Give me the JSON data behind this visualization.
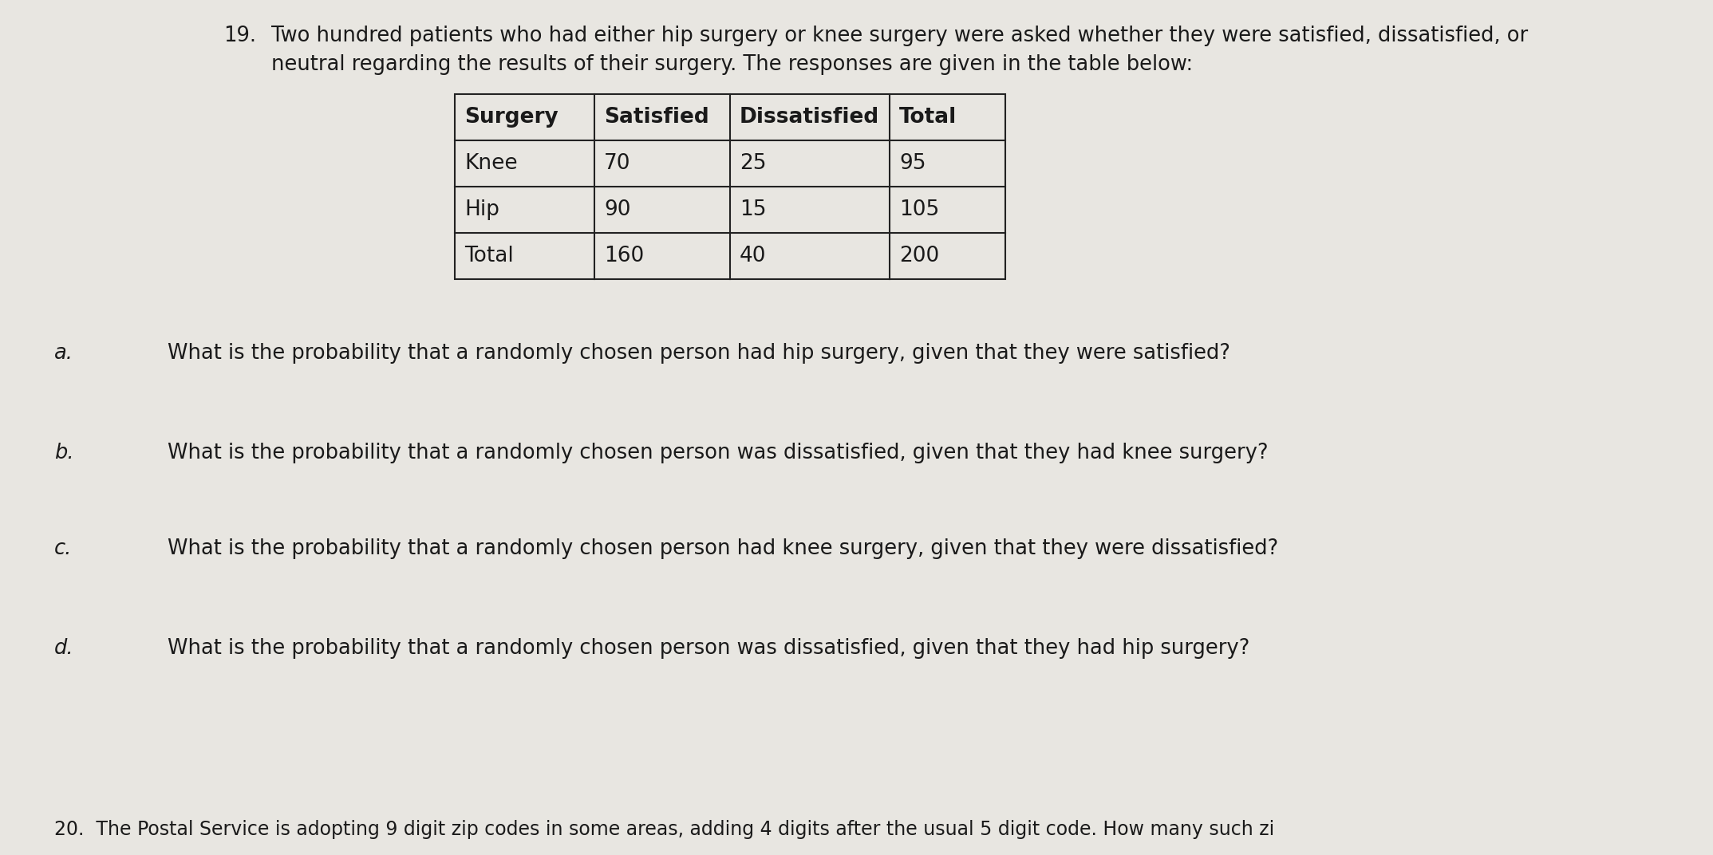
{
  "problem_number": "19.",
  "intro_text_line1": "Two hundred patients who had either hip surgery or knee surgery were asked whether they were satisfied, dissatisfied, or",
  "intro_text_line2": "neutral regarding the results of their surgery. The responses are given in the table below:",
  "table_headers": [
    "Surgery",
    "Satisfied",
    "Dissatisfied",
    "Total"
  ],
  "table_rows": [
    [
      "Knee",
      "70",
      "25",
      "95"
    ],
    [
      "Hip",
      "90",
      "15",
      "105"
    ],
    [
      "Total",
      "160",
      "40",
      "200"
    ]
  ],
  "questions": [
    {
      "label": "a.",
      "text": "What is the probability that a randomly chosen person had hip surgery, given that they were satisfied?"
    },
    {
      "label": "b.",
      "text": "What is the probability that a randomly chosen person was dissatisfied, given that they had knee surgery?"
    },
    {
      "label": "c.",
      "text": "What is the probability that a randomly chosen person had knee surgery, given that they were dissatisfied?"
    },
    {
      "label": "d.",
      "text": "What is the probability that a randomly chosen person was dissatisfied, given that they had hip surgery?"
    }
  ],
  "footer_text": "20.  The Postal Service is adopting 9 digit zip codes in some areas, adding 4 digits after the usual 5 digit code. How many such zi",
  "bg_color": "#e8e6e1",
  "text_color": "#1a1a1a",
  "table_border_color": "#222222",
  "font_size_intro": 18.5,
  "font_size_table_header": 19.0,
  "font_size_table_data": 19.0,
  "font_size_question": 18.5,
  "font_size_footer": 17.0,
  "font_size_problem_num": 18.5
}
